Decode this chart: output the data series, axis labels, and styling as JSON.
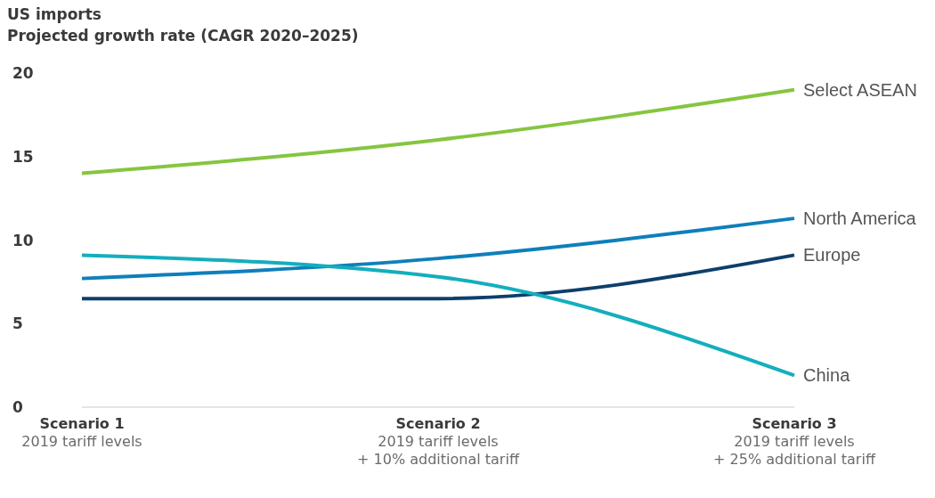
{
  "chart_data": {
    "type": "line",
    "title": "US imports",
    "subtitle": "Projected growth rate (CAGR 2020–2025)",
    "categories": [
      "Scenario 1\n2019 tariff levels",
      "Scenario 2\n2019 tariff levels\n+ 10% additional tariff",
      "Scenario 3\n2019 tariff levels\n+ 25% additional tariff"
    ],
    "series": [
      {
        "name": "Select ASEAN",
        "color": "#86c540",
        "values": [
          14,
          16,
          19
        ]
      },
      {
        "name": "North America",
        "color": "#0f7fba",
        "values": [
          7.7,
          8.9,
          11.3
        ]
      },
      {
        "name": "Europe",
        "color": "#0d3f6b",
        "values": [
          6.5,
          6.5,
          9.1
        ]
      },
      {
        "name": "China",
        "color": "#14aebd",
        "values": [
          9.1,
          7.8,
          1.9
        ]
      }
    ],
    "ylim": [
      0,
      20
    ],
    "yticks": [
      0,
      5,
      10,
      15,
      20
    ],
    "grid": false,
    "legend": false,
    "marker": "none",
    "line_style": "solid"
  }
}
